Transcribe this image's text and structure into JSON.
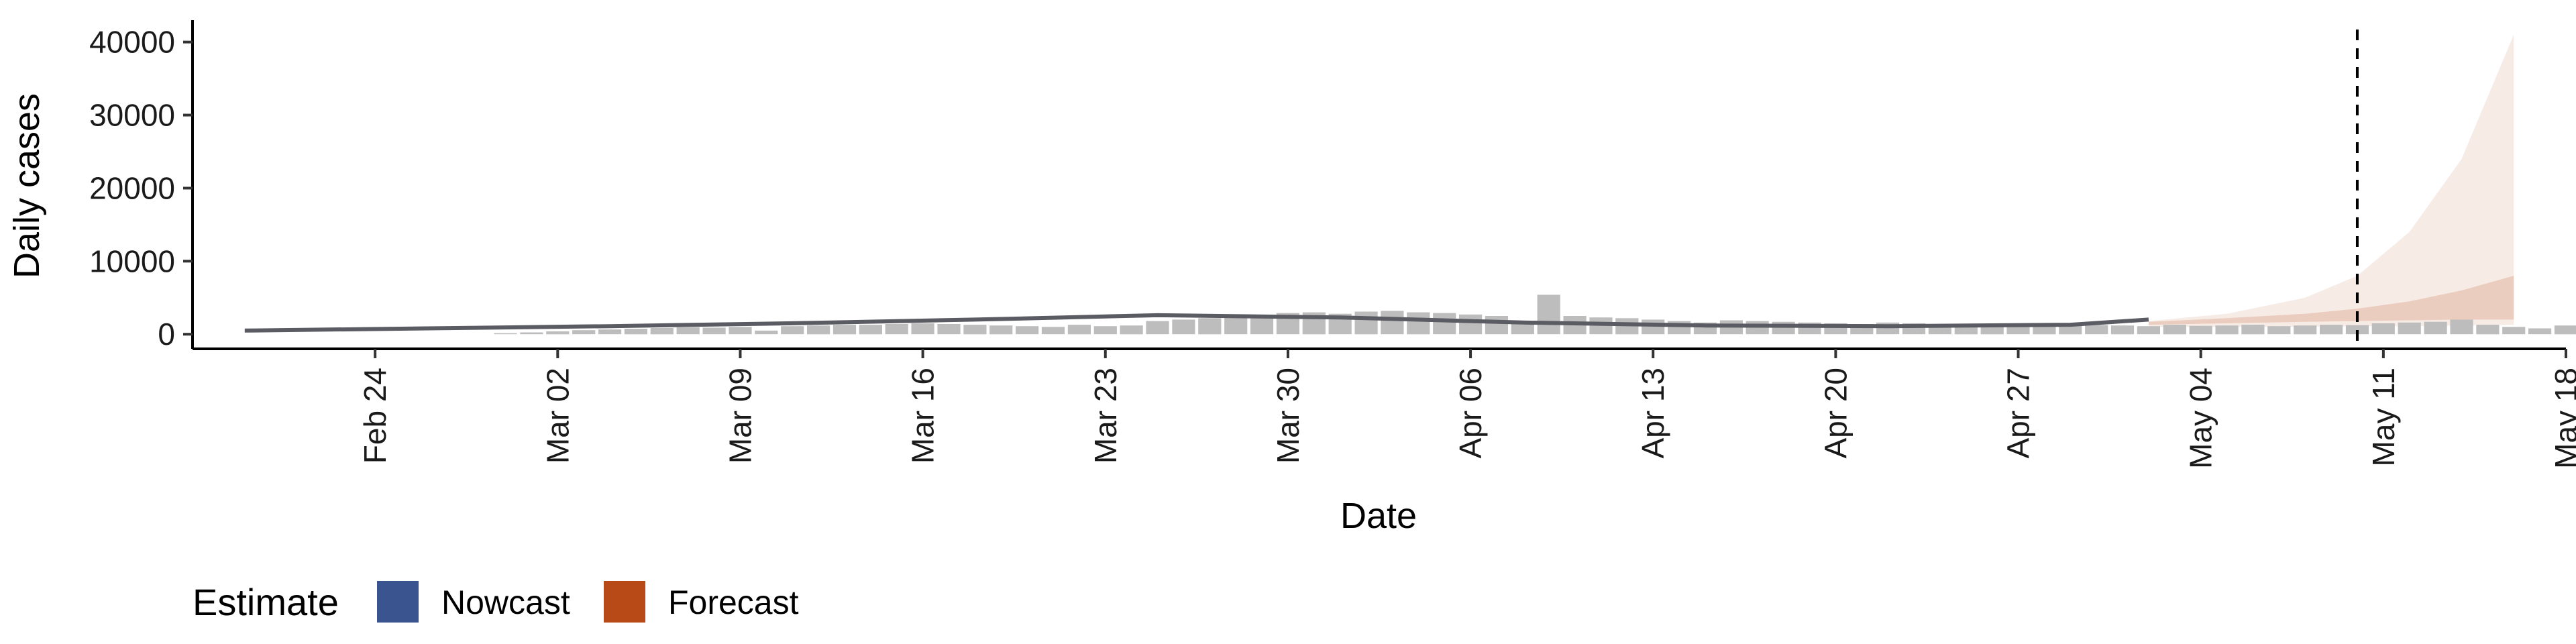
{
  "chart_data": {
    "type": "bar",
    "title": "",
    "xlabel": "Date",
    "ylabel": "Daily cases",
    "ylim": [
      -2000,
      43000
    ],
    "xlim": [
      "2020-02-17",
      "2020-05-18"
    ],
    "yticks": [
      0,
      10000,
      20000,
      30000,
      40000
    ],
    "ytick_labels": [
      "0",
      "10000",
      "20000",
      "30000",
      "40000"
    ],
    "xticks": [
      "2020-02-24",
      "2020-03-02",
      "2020-03-09",
      "2020-03-16",
      "2020-03-23",
      "2020-03-30",
      "2020-04-06",
      "2020-04-13",
      "2020-04-20",
      "2020-04-27",
      "2020-05-04",
      "2020-05-11",
      "2020-05-18"
    ],
    "xtick_labels": [
      "Feb 24",
      "Mar 02",
      "Mar 09",
      "Mar 16",
      "Mar 23",
      "Mar 30",
      "Apr 06",
      "Apr 13",
      "Apr 20",
      "Apr 27",
      "May 04",
      "May 11",
      "May 18"
    ],
    "grid": false,
    "legend_position": "bottom-left",
    "vline_date": "2020-05-10",
    "reported_cases": {
      "start_date": "2020-02-29",
      "values": [
        150,
        250,
        400,
        550,
        650,
        750,
        850,
        950,
        900,
        1000,
        500,
        1100,
        1200,
        1300,
        1300,
        1400,
        1500,
        1400,
        1300,
        1200,
        1100,
        1000,
        1300,
        1100,
        1200,
        1800,
        2000,
        2200,
        2400,
        2600,
        2900,
        3000,
        2800,
        3100,
        3200,
        3000,
        2900,
        2700,
        2500,
        1500,
        5400,
        2500,
        2300,
        2200,
        2000,
        1800,
        1600,
        1900,
        1800,
        1700,
        1600,
        1500,
        1400,
        1600,
        1500,
        1400,
        1300,
        1200,
        1400,
        1200,
        1300,
        1250,
        1200,
        1100,
        1300,
        1150,
        1200,
        1300,
        1100,
        1200,
        1300,
        1250,
        1500,
        1600,
        1700,
        2000,
        1300,
        1000,
        800,
        1200,
        1300,
        1500,
        1600,
        1700,
        1600,
        1500
      ]
    },
    "estimate_line": {
      "dates": [
        "2020-02-19",
        "2020-02-26",
        "2020-03-04",
        "2020-03-11",
        "2020-03-18",
        "2020-03-25",
        "2020-04-01",
        "2020-04-08",
        "2020-04-15",
        "2020-04-22",
        "2020-04-29",
        "2020-05-02"
      ],
      "values": [
        500,
        800,
        1100,
        1500,
        2000,
        2600,
        2300,
        1600,
        1200,
        1100,
        1300,
        2000
      ]
    },
    "forecast": {
      "dates": [
        "2020-05-02",
        "2020-05-05",
        "2020-05-08",
        "2020-05-10",
        "2020-05-12",
        "2020-05-14",
        "2020-05-16"
      ],
      "outer_upper": [
        1800,
        2800,
        5000,
        8000,
        14000,
        24000,
        41000
      ],
      "outer_lower": [
        1000,
        1000,
        1000,
        1100,
        1100,
        1200,
        1300
      ],
      "inner_upper": [
        1700,
        2200,
        2800,
        3500,
        4500,
        6000,
        8000
      ],
      "inner_lower": [
        1300,
        1500,
        1700,
        1800,
        1900,
        2000,
        2000
      ]
    },
    "legend": {
      "title": "Estimate",
      "items": [
        {
          "label": "Nowcast",
          "color": "#3a5490"
        },
        {
          "label": "Forecast",
          "color": "#b84a17"
        }
      ]
    },
    "colors": {
      "bars": "#bdbdbd",
      "estimate_line": "#5b5b63",
      "forecast_outer": "#f7ebe6",
      "forecast_inner": "#ebcdbf",
      "axis": "#000000"
    }
  }
}
